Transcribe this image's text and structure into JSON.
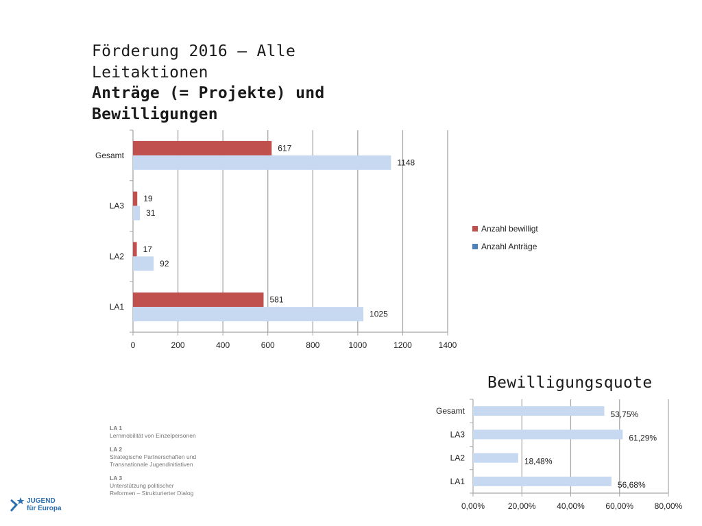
{
  "title": {
    "line1": "Förderung 2016 – Alle",
    "line2": "Leitaktionen",
    "line3": "Anträge (= Projekte) und",
    "line4": "Bewilligungen"
  },
  "subtitle": "Bewilligungsquote",
  "colors": {
    "bewilligt": "#c0504d",
    "antraege_bar": "#c6d9f1",
    "antraege_legend": "#4f81bd",
    "quote_bar": "#c6d9f1",
    "grid": "#a6a6a6"
  },
  "chart_data": [
    {
      "type": "bar",
      "orientation": "horizontal",
      "categories": [
        "Gesamt",
        "LA3",
        "LA2",
        "LA1"
      ],
      "series": [
        {
          "name": "Anzahl bewilligt",
          "values": [
            617,
            19,
            17,
            581
          ]
        },
        {
          "name": "Anzahl Anträge",
          "values": [
            1148,
            31,
            92,
            1025
          ]
        }
      ],
      "xlim": [
        0,
        1400
      ],
      "xticks": [
        "0",
        "200",
        "400",
        "600",
        "800",
        "1000",
        "1200",
        "1400"
      ],
      "grid": true,
      "legend": "right"
    },
    {
      "type": "bar",
      "orientation": "horizontal",
      "categories": [
        "Gesamt",
        "LA3",
        "LA2",
        "LA1"
      ],
      "values": [
        53.75,
        61.29,
        18.48,
        56.68
      ],
      "labels": [
        "53,75%",
        "61,29%",
        "18,48%",
        "56,68%"
      ],
      "xlim": [
        0,
        80
      ],
      "xticks": [
        "0,00%",
        "20,00%",
        "40,00%",
        "60,00%",
        "80,00%"
      ],
      "grid": true
    }
  ],
  "notes": [
    {
      "head": "LA 1",
      "lines": [
        "Lernmobilität von Einzelpersonen"
      ]
    },
    {
      "head": "LA 2",
      "lines": [
        "Strategische Partnerschaften und",
        "Transnationale Jugendinitiativen"
      ]
    },
    {
      "head": "LA 3",
      "lines": [
        "Unterstützung politischer",
        "Reformen – Strukturierter Dialog"
      ]
    }
  ],
  "logo": {
    "line1": "JUGEND",
    "line2": "für Europa"
  }
}
